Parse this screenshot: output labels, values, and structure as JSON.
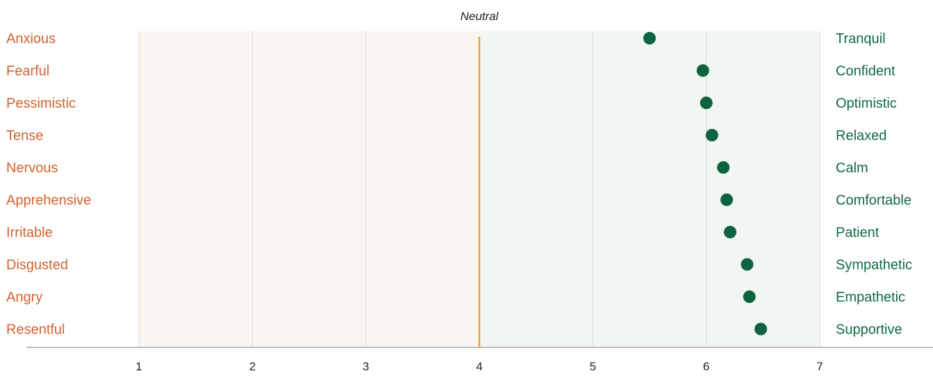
{
  "chart_data": {
    "type": "scatter",
    "title": "",
    "neutral_label": "Neutral",
    "neutral_value": 4,
    "xlim": [
      1,
      7
    ],
    "xticks": [
      "1",
      "2",
      "3",
      "4",
      "5",
      "6",
      "7"
    ],
    "grid": true,
    "colors": {
      "negative_text": "#d2622f",
      "positive_text": "#0f6a41",
      "dot": "#0d6340",
      "neutral_line": "#e8a33b",
      "negative_band": "#fbf5f2",
      "positive_band": "#f1f6f3",
      "gridline": "#d9d9d9",
      "axis": "#bfbfbf"
    },
    "rows": [
      {
        "negative": "Anxious",
        "positive": "Tranquil",
        "value": 5.5
      },
      {
        "negative": "Fearful",
        "positive": "Confident",
        "value": 5.97
      },
      {
        "negative": "Pessimistic",
        "positive": "Optimistic",
        "value": 6.0
      },
      {
        "negative": "Tense",
        "positive": "Relaxed",
        "value": 6.05
      },
      {
        "negative": "Nervous",
        "positive": "Calm",
        "value": 6.15
      },
      {
        "negative": "Apprehensive",
        "positive": "Comfortable",
        "value": 6.18
      },
      {
        "negative": "Irritable",
        "positive": "Patient",
        "value": 6.21
      },
      {
        "negative": "Disgusted",
        "positive": "Sympathetic",
        "value": 6.36
      },
      {
        "negative": "Angry",
        "positive": "Empathetic",
        "value": 6.38
      },
      {
        "negative": "Resentful",
        "positive": "Supportive",
        "value": 6.48
      }
    ]
  }
}
